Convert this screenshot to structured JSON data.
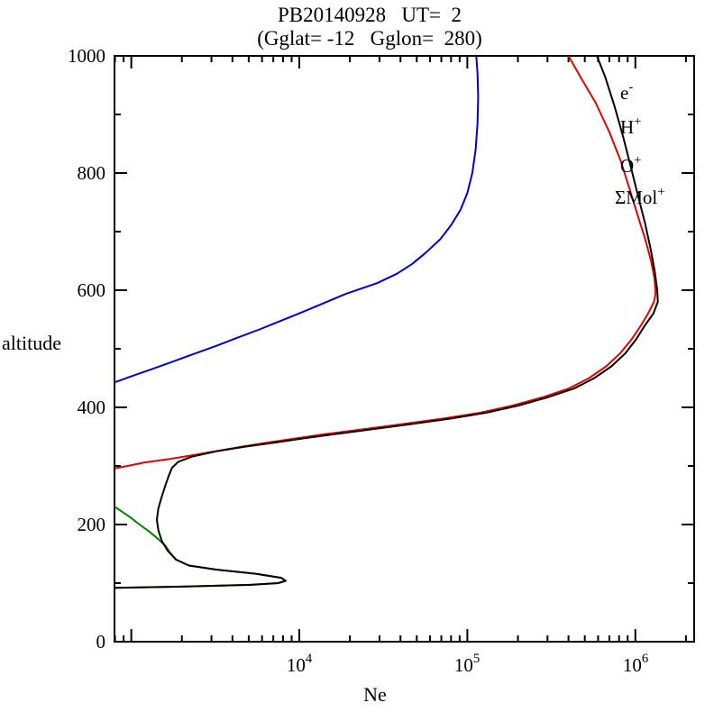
{
  "header": {
    "title": "PB20140928   UT=  2",
    "subtitle": "(Gglat= -12   Gglon=  280)"
  },
  "chart_data": {
    "type": "line",
    "title": "PB20140928 UT= 2 (Gglat= -12 Gglon= 280)",
    "xlabel": "Ne",
    "ylabel": "altitude",
    "x_scale": "log",
    "x_log_range": [
      2.9,
      6.35
    ],
    "y_range": [
      0,
      1000
    ],
    "y_major_step": 200,
    "y_minor_step": 100,
    "grid": false,
    "legend_position": "top-right-inside",
    "x_tick_labels": [
      {
        "base": "10",
        "exp": "4",
        "value": 10000
      },
      {
        "base": "10",
        "exp": "5",
        "value": 100000
      },
      {
        "base": "10",
        "exp": "6",
        "value": 1000000
      }
    ],
    "y_tick_labels": [
      "0",
      "200",
      "400",
      "600",
      "800",
      "1000"
    ],
    "series": [
      {
        "name": "e-",
        "legend_base": "e",
        "legend_sup": "-",
        "color": "#000000",
        "points": [
          [
            800,
            92
          ],
          [
            2000,
            94
          ],
          [
            5000,
            97
          ],
          [
            7500,
            100
          ],
          [
            8300,
            104
          ],
          [
            7800,
            109
          ],
          [
            5500,
            116
          ],
          [
            3200,
            123
          ],
          [
            2200,
            130
          ],
          [
            1850,
            140
          ],
          [
            1650,
            155
          ],
          [
            1520,
            172
          ],
          [
            1450,
            190
          ],
          [
            1420,
            208
          ],
          [
            1450,
            228
          ],
          [
            1520,
            248
          ],
          [
            1600,
            268
          ],
          [
            1680,
            285
          ],
          [
            1750,
            297
          ],
          [
            1900,
            307
          ],
          [
            2300,
            316
          ],
          [
            3200,
            325
          ],
          [
            4800,
            333
          ],
          [
            7200,
            340
          ],
          [
            10500,
            347
          ],
          [
            16000,
            354
          ],
          [
            26000,
            362
          ],
          [
            45000,
            371
          ],
          [
            80000,
            381
          ],
          [
            130000,
            391
          ],
          [
            200000,
            403
          ],
          [
            300000,
            417
          ],
          [
            430000,
            432
          ],
          [
            570000,
            450
          ],
          [
            720000,
            470
          ],
          [
            870000,
            492
          ],
          [
            1010000,
            516
          ],
          [
            1140000,
            540
          ],
          [
            1280000,
            560
          ],
          [
            1360000,
            580
          ],
          [
            1350000,
            600
          ],
          [
            1300000,
            635
          ],
          [
            1230000,
            672
          ],
          [
            1140000,
            715
          ],
          [
            1040000,
            760
          ],
          [
            940000,
            810
          ],
          [
            840000,
            865
          ],
          [
            750000,
            915
          ],
          [
            660000,
            965
          ],
          [
            590000,
            1000
          ]
        ]
      },
      {
        "name": "H+",
        "legend_base": "H",
        "legend_sup": "+",
        "color": "#0000cc",
        "points": [
          [
            800,
            443
          ],
          [
            1000,
            453
          ],
          [
            1350,
            466
          ],
          [
            1800,
            479
          ],
          [
            2400,
            492
          ],
          [
            3200,
            505
          ],
          [
            4300,
            519
          ],
          [
            5800,
            533
          ],
          [
            7800,
            548
          ],
          [
            10500,
            563
          ],
          [
            14000,
            578
          ],
          [
            19000,
            594
          ],
          [
            29000,
            612
          ],
          [
            38000,
            628
          ],
          [
            47000,
            645
          ],
          [
            57000,
            665
          ],
          [
            69000,
            687
          ],
          [
            80000,
            711
          ],
          [
            91000,
            737
          ],
          [
            100000,
            766
          ],
          [
            107000,
            800
          ],
          [
            112000,
            840
          ],
          [
            115000,
            885
          ],
          [
            116000,
            930
          ],
          [
            115000,
            970
          ],
          [
            113000,
            1000
          ]
        ]
      },
      {
        "name": "O+",
        "legend_base": "O",
        "legend_sup": "+",
        "color": "#e00000",
        "points": [
          [
            800,
            296
          ],
          [
            950,
            300
          ],
          [
            1200,
            306
          ],
          [
            1700,
            312
          ],
          [
            2400,
            319
          ],
          [
            3300,
            326
          ],
          [
            4600,
            333
          ],
          [
            6500,
            340
          ],
          [
            9500,
            347
          ],
          [
            14000,
            354
          ],
          [
            23000,
            362
          ],
          [
            40000,
            371
          ],
          [
            72000,
            381
          ],
          [
            120000,
            391
          ],
          [
            185000,
            403
          ],
          [
            280000,
            417
          ],
          [
            400000,
            432
          ],
          [
            530000,
            450
          ],
          [
            670000,
            470
          ],
          [
            810000,
            492
          ],
          [
            950000,
            516
          ],
          [
            1080000,
            540
          ],
          [
            1200000,
            562
          ],
          [
            1290000,
            580
          ],
          [
            1320000,
            595
          ],
          [
            1300000,
            620
          ],
          [
            1240000,
            650
          ],
          [
            1150000,
            685
          ],
          [
            1040000,
            725
          ],
          [
            930000,
            770
          ],
          [
            820000,
            820
          ],
          [
            700000,
            870
          ],
          [
            580000,
            920
          ],
          [
            480000,
            960
          ],
          [
            400000,
            1000
          ]
        ]
      },
      {
        "name": "Sum Mol+",
        "legend_base": "ΣMol",
        "legend_sup": "+",
        "color": "#008000",
        "points": [
          [
            800,
            230
          ],
          [
            880,
            222
          ],
          [
            990,
            212
          ],
          [
            1120,
            200
          ],
          [
            1280,
            188
          ],
          [
            1450,
            175
          ],
          [
            1600,
            163
          ],
          [
            1700,
            152
          ],
          [
            1850,
            140
          ],
          [
            2200,
            130
          ],
          [
            3200,
            123
          ],
          [
            5500,
            116
          ],
          [
            7800,
            109
          ],
          [
            8300,
            104
          ],
          [
            7500,
            100
          ],
          [
            5000,
            97
          ],
          [
            2000,
            94
          ],
          [
            800,
            92
          ]
        ]
      }
    ]
  }
}
